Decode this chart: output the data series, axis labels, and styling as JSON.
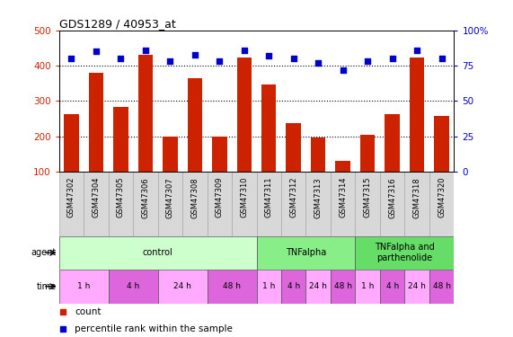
{
  "title": "GDS1289 / 40953_at",
  "samples": [
    "GSM47302",
    "GSM47304",
    "GSM47305",
    "GSM47306",
    "GSM47307",
    "GSM47308",
    "GSM47309",
    "GSM47310",
    "GSM47311",
    "GSM47312",
    "GSM47313",
    "GSM47314",
    "GSM47315",
    "GSM47316",
    "GSM47318",
    "GSM47320"
  ],
  "counts": [
    262,
    380,
    283,
    430,
    200,
    365,
    200,
    422,
    347,
    237,
    197,
    130,
    205,
    263,
    422,
    258
  ],
  "percentiles": [
    80,
    85,
    80,
    86,
    78,
    83,
    78,
    86,
    82,
    80,
    77,
    72,
    78,
    80,
    86,
    80
  ],
  "bar_color": "#cc2200",
  "dot_color": "#0000cc",
  "ylim_left": [
    100,
    500
  ],
  "ylim_right": [
    0,
    100
  ],
  "yticks_left": [
    100,
    200,
    300,
    400,
    500
  ],
  "yticks_right": [
    0,
    25,
    50,
    75,
    100
  ],
  "agent_groups": [
    {
      "label": "control",
      "start": 0,
      "end": 8,
      "color": "#ccffcc"
    },
    {
      "label": "TNFalpha",
      "start": 8,
      "end": 12,
      "color": "#88ee88"
    },
    {
      "label": "TNFalpha and\nparthenolide",
      "start": 12,
      "end": 16,
      "color": "#66dd66"
    }
  ],
  "time_groups": [
    {
      "label": "1 h",
      "start": 0,
      "end": 2,
      "color": "#ffaaff"
    },
    {
      "label": "4 h",
      "start": 2,
      "end": 4,
      "color": "#dd66dd"
    },
    {
      "label": "24 h",
      "start": 4,
      "end": 6,
      "color": "#ffaaff"
    },
    {
      "label": "48 h",
      "start": 6,
      "end": 8,
      "color": "#dd66dd"
    },
    {
      "label": "1 h",
      "start": 8,
      "end": 9,
      "color": "#ffaaff"
    },
    {
      "label": "4 h",
      "start": 9,
      "end": 10,
      "color": "#dd66dd"
    },
    {
      "label": "24 h",
      "start": 10,
      "end": 11,
      "color": "#ffaaff"
    },
    {
      "label": "48 h",
      "start": 11,
      "end": 12,
      "color": "#dd66dd"
    },
    {
      "label": "1 h",
      "start": 12,
      "end": 13,
      "color": "#ffaaff"
    },
    {
      "label": "4 h",
      "start": 13,
      "end": 14,
      "color": "#dd66dd"
    },
    {
      "label": "24 h",
      "start": 14,
      "end": 15,
      "color": "#ffaaff"
    },
    {
      "label": "48 h",
      "start": 15,
      "end": 16,
      "color": "#dd66dd"
    }
  ],
  "legend_count_color": "#cc2200",
  "legend_dot_color": "#0000cc",
  "grid_color": "#000000",
  "tick_color_left": "#cc2200",
  "tick_color_right": "#0000cc",
  "bar_bottom": 100,
  "sample_bg_color": "#d8d8d8",
  "sample_border_color": "#aaaaaa"
}
